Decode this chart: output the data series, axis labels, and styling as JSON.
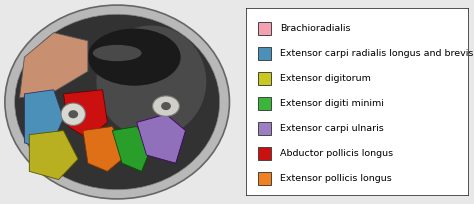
{
  "legend_items": [
    {
      "label": "Brachioradialis",
      "color": "#f4a0b0"
    },
    {
      "label": "Extensor carpi radialis longus and brevis",
      "color": "#4a90b8"
    },
    {
      "label": "Extensor digitorum",
      "color": "#c8c820"
    },
    {
      "label": "Extensor digiti minimi",
      "color": "#3ab53a"
    },
    {
      "label": "Extensor carpi ulnaris",
      "color": "#9b7fc2"
    },
    {
      "label": "Abductor pollicis longus",
      "color": "#cc1010"
    },
    {
      "label": "Extensor pollicis longus",
      "color": "#f08020"
    }
  ],
  "legend_box_color": "#333333",
  "legend_bg_color": "#ffffff",
  "text_color": "#000000",
  "font_size": 6.8,
  "fig_bg_color": "#e8e8e8",
  "anatomy_bg": "#c8c8c8",
  "anatomy_dark": "#2a2a2a",
  "brachioradialis_color": "#c89070",
  "ecr_color": "#4a90b8",
  "ed_color": "#b8b020",
  "apl_color": "#cc1010",
  "epl_color": "#e07018",
  "edm_color": "#2a9e2a",
  "ecu_color": "#9070bb"
}
